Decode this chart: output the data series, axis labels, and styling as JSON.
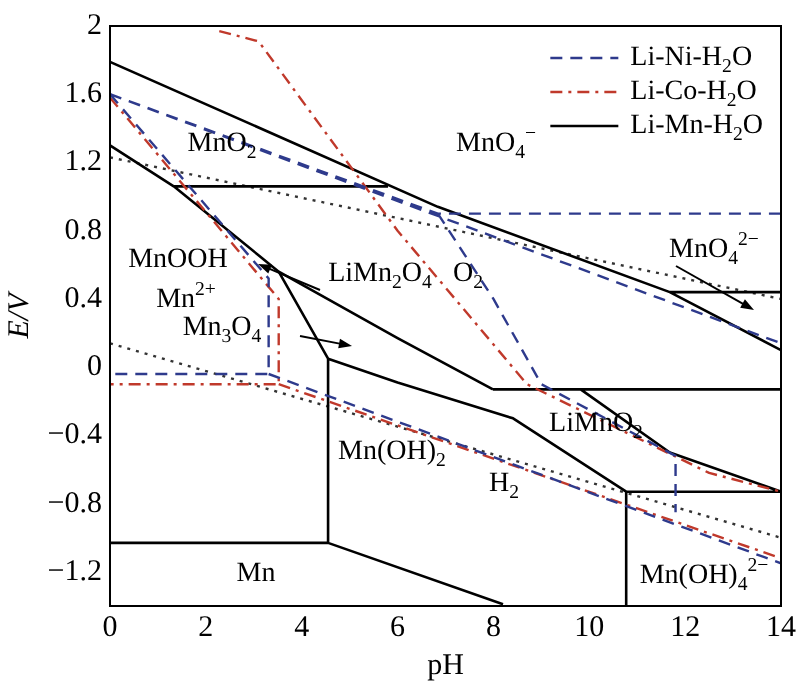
{
  "chart_data": {
    "type": "line",
    "xlabel": "pH",
    "ylabel": "E/V",
    "xlim": [
      0,
      14
    ],
    "xticks": [
      0,
      2,
      4,
      6,
      8,
      10,
      12,
      14
    ],
    "ylim": [
      -1.4,
      2.0
    ],
    "yticks": [
      {
        "value": -1.2,
        "label": "−1.2"
      },
      {
        "value": -0.8,
        "label": "−0.8"
      },
      {
        "value": -0.4,
        "label": "−0.4"
      },
      0,
      0.4,
      0.8,
      1.2,
      1.6,
      2.0
    ],
    "grid": false,
    "legend": "top right",
    "marker": "none",
    "series": [
      {
        "name": "Li-Ni-H$_{2}$O",
        "color": "#2e3a8c",
        "line_style": "dashed",
        "x": [
          0,
          6.84,
          14,
          null,
          0,
          14,
          null,
          0,
          3.31,
          3.31,
          0,
          null,
          3.31,
          14,
          null,
          6.84,
          8.0,
          9.0,
          11.8,
          11.8
        ],
        "values": [
          1.6,
          0.9,
          0.9,
          null,
          1.6,
          0.14,
          null,
          1.6,
          0.52,
          -0.04,
          -0.04,
          null,
          -0.04,
          -1.15,
          null,
          0.9,
          0.4,
          -0.1,
          -0.52,
          -0.85
        ]
      },
      {
        "name": "Li-Co-H$_{2}$O",
        "color": "#c0392b",
        "line_style": "dashdot",
        "x": [
          2.28,
          3.1,
          6.0,
          8.7,
          12.5,
          14,
          null,
          0,
          3.52,
          3.52,
          0,
          null,
          3.52,
          14
        ],
        "values": [
          1.97,
          1.91,
          0.8,
          -0.1,
          -0.62,
          -0.73,
          null,
          1.58,
          0.4,
          -0.1,
          -0.1,
          null,
          -0.1,
          -1.12
        ]
      },
      {
        "name": "Li-Mn-H$_{2}$O",
        "color": "#000000",
        "line_style": "solid",
        "x": [
          0,
          6.84,
          11.68,
          14,
          null,
          1.33,
          5.8,
          null,
          0,
          1.33,
          3.52,
          6.0,
          7.99,
          null,
          3.52,
          4.55,
          null,
          4.55,
          6.0,
          8.41,
          10.77,
          null,
          7.99,
          14,
          null,
          10.77,
          14,
          null,
          10.77,
          10.77,
          null,
          9.82,
          11.68,
          14,
          null,
          4.55,
          4.55,
          null,
          0,
          4.55,
          8.2,
          null,
          11.68,
          14
        ],
        "values": [
          1.79,
          0.94,
          0.44,
          0.1,
          null,
          1.06,
          1.06,
          null,
          1.3,
          1.06,
          0.56,
          0.17,
          -0.13,
          null,
          0.56,
          0.05,
          null,
          0.05,
          -0.09,
          -0.3,
          -0.73,
          null,
          -0.13,
          -0.13,
          null,
          -0.73,
          -0.73,
          null,
          -0.73,
          -1.4,
          null,
          -0.13,
          -0.5,
          -0.73,
          null,
          0.05,
          -1.03,
          null,
          -1.03,
          -1.03,
          -1.39,
          null,
          0.44,
          0.44
        ]
      },
      {
        "color": "#333333",
        "line_style": "dotted",
        "x": [
          0,
          14
        ],
        "values": [
          1.23,
          0.4
        ]
      },
      {
        "color": "#333333",
        "line_style": "dotted",
        "x": [
          0,
          14
        ],
        "values": [
          0.14,
          -1.0
        ]
      }
    ],
    "annotations": [
      "MnO$_{2}$",
      "MnO$_{4}$$^{−}$",
      "MnO$_{4}$$^{2−}$",
      "MnOOH",
      "Mn$^{2+}$",
      "LiMn$_{2}$O$_{4}$",
      "O$_{2}$",
      "Mn$_{3}$O$_{4}$",
      "Mn(OH)$_{2}$",
      "LiMnO$_{2}$",
      "H$_{2}$",
      "Mn",
      "Mn(OH)$_{4}$$^{2−}$"
    ]
  }
}
